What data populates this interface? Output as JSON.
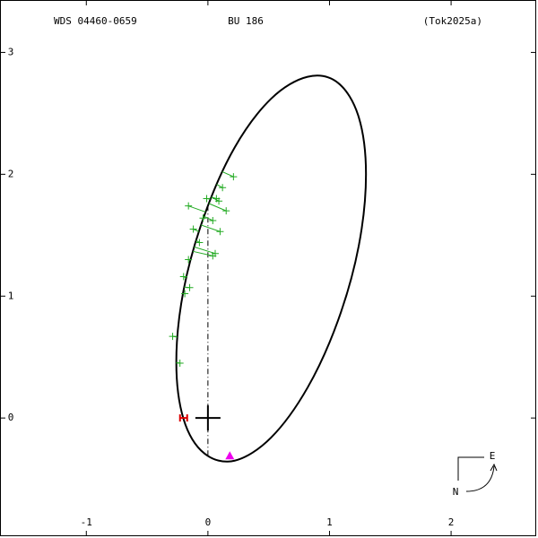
{
  "chart_data": {
    "type": "orbit",
    "title_left": "WDS 04460-0659",
    "title_center": "BU  186",
    "title_right": "(Tok2025a)",
    "xlim": [
      -1.71,
      2.7
    ],
    "ylim": [
      -0.97,
      3.43
    ],
    "xticks": [
      -1,
      0,
      1,
      2
    ],
    "yticks": [
      0,
      1,
      2,
      3
    ],
    "orbit": {
      "color": "#000000",
      "x": [
        1.3,
        1.24,
        1.07,
        0.82,
        0.52,
        0.22,
        -0.03,
        -0.2,
        -0.26,
        -0.2,
        -0.03,
        0.22,
        0.52,
        0.82,
        1.07,
        1.24
      ],
      "y": [
        2.0,
        2.47,
        2.75,
        2.8,
        2.62,
        2.22,
        1.66,
        1.05,
        0.46,
        -0.01,
        -0.29,
        -0.35,
        -0.16,
        0.25,
        0.8,
        1.41
      ]
    },
    "observations": {
      "color": "#22aa22",
      "x": [
        0.21,
        0.12,
        0.07,
        0.09,
        -0.01,
        -0.16,
        0.15,
        -0.04,
        0.04,
        0.1,
        -0.12,
        -0.07,
        0.06,
        0.04,
        -0.16,
        -0.2,
        -0.15,
        -0.19,
        -0.29,
        -0.23
      ],
      "y": [
        1.98,
        1.89,
        1.8,
        1.78,
        1.8,
        1.74,
        1.7,
        1.64,
        1.62,
        1.53,
        1.55,
        1.44,
        1.35,
        1.33,
        1.3,
        1.16,
        1.07,
        1.02,
        0.67,
        0.45
      ]
    },
    "primary": {
      "x": 0,
      "y": 0
    },
    "node_marker": {
      "x": -0.2,
      "y": 0,
      "color": "#dd0000"
    },
    "periastron": {
      "x": 0.18,
      "y": -0.31,
      "color": "#ee00ee"
    },
    "compass": {
      "east": "E",
      "north": "N"
    }
  }
}
